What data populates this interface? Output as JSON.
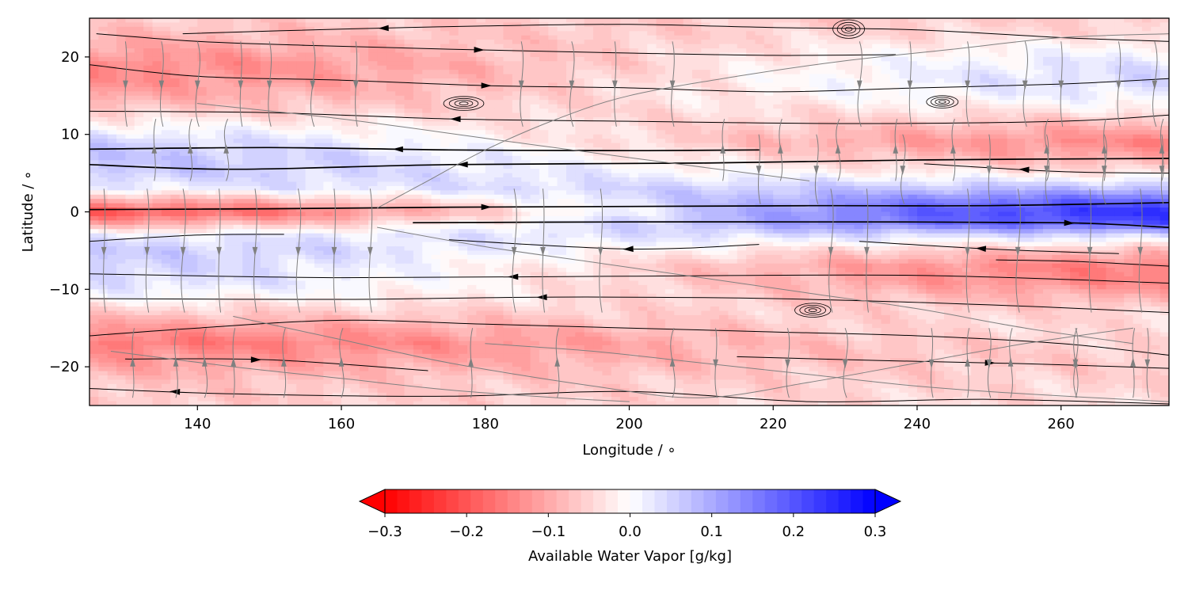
{
  "chart_data": {
    "type": "heatmap",
    "title": "",
    "xlabel": "Longitude / ∘",
    "ylabel": "Latitude / ∘",
    "xlim": [
      125,
      275
    ],
    "ylim": [
      -25,
      25
    ],
    "xticks": [
      140,
      160,
      180,
      200,
      220,
      240,
      260
    ],
    "yticks": [
      20,
      10,
      0,
      -10,
      -20
    ],
    "xtick_labels": [
      "140",
      "160",
      "180",
      "200",
      "220",
      "240",
      "260"
    ],
    "ytick_labels": [
      "20",
      "10",
      "0",
      "−10",
      "−20"
    ],
    "grid": false,
    "colormap": "bwr_r",
    "colors": {
      "low": "#ff0000",
      "mid": "#ffffff",
      "high": "#0000ff"
    },
    "colorbar": {
      "label": "Available Water Vapor [g/kg]",
      "range": [
        -0.3,
        0.3
      ],
      "levels": 40,
      "extend": "both",
      "ticks": [
        -0.3,
        -0.2,
        -0.1,
        0.0,
        0.1,
        0.2,
        0.3
      ],
      "tick_labels": [
        "−0.3",
        "−0.2",
        "−0.1",
        "0.0",
        "0.1",
        "0.2",
        "0.3"
      ]
    },
    "field_profile": {
      "description_axis": "latitude",
      "lat": [
        -25,
        -22,
        -19,
        -17,
        -15,
        -13,
        -11,
        -9,
        -7,
        -5,
        -3,
        -1.5,
        0,
        1.5,
        3,
        5,
        7,
        9,
        11,
        13,
        15,
        17,
        19,
        21,
        23,
        25
      ],
      "west_value": [
        -0.06,
        -0.07,
        -0.12,
        -0.16,
        -0.12,
        -0.06,
        0.0,
        0.04,
        0.05,
        0.06,
        0.02,
        -0.1,
        -0.2,
        -0.1,
        0.02,
        0.06,
        0.07,
        0.05,
        0.0,
        -0.06,
        -0.1,
        -0.13,
        -0.14,
        -0.11,
        -0.08,
        -0.06
      ],
      "east_value": [
        -0.04,
        -0.05,
        -0.06,
        -0.05,
        -0.04,
        -0.05,
        -0.09,
        -0.14,
        -0.15,
        -0.08,
        0.05,
        0.2,
        0.24,
        0.18,
        0.08,
        -0.03,
        -0.1,
        -0.14,
        -0.09,
        -0.03,
        0.02,
        0.04,
        0.03,
        0.0,
        -0.04,
        -0.06
      ]
    },
    "streamlines": [
      {
        "strength": "strong",
        "lon": [
          125,
          150,
          175,
          200,
          225,
          250,
          275
        ],
        "lat": [
          0.3,
          0.4,
          0.6,
          0.7,
          0.8,
          0.8,
          1.2
        ],
        "arrow_lon": 180,
        "direction": "east"
      },
      {
        "strength": "strong",
        "lon": [
          170,
          200,
          230,
          260,
          275
        ],
        "lat": [
          -1.4,
          -1.3,
          -1.3,
          -1.4,
          -2.0
        ],
        "arrow_lon": 261,
        "direction": "east"
      },
      {
        "strength": "strong",
        "lon": [
          125,
          150,
          175,
          200,
          218
        ],
        "lat": [
          8.1,
          8.3,
          8.0,
          7.9,
          8.0
        ],
        "arrow_lon": 168,
        "direction": "west"
      },
      {
        "strength": "strong",
        "lon": [
          125,
          145,
          175,
          210,
          240,
          275
        ],
        "lat": [
          6.1,
          5.5,
          6.1,
          6.3,
          6.7,
          6.9
        ],
        "arrow_lon": 177,
        "direction": "west"
      },
      {
        "strength": "medium",
        "lon": [
          125,
          140,
          160,
          180,
          200,
          220,
          240,
          260,
          275
        ],
        "lat": [
          19.0,
          17.5,
          17.0,
          16.3,
          16.0,
          15.5,
          16.0,
          16.5,
          17.2
        ],
        "arrow_lon": 180,
        "direction": "east"
      },
      {
        "strength": "medium",
        "lon": [
          125,
          150,
          175,
          200,
          230,
          260,
          275
        ],
        "lat": [
          13.0,
          12.8,
          12.0,
          11.7,
          11.4,
          11.7,
          12.5
        ],
        "arrow_lon": 176,
        "direction": "west"
      },
      {
        "strength": "medium",
        "lon": [
          125,
          160,
          200,
          240,
          275
        ],
        "lat": [
          -8.0,
          -8.5,
          -8.3,
          -8.2,
          -9.2
        ],
        "arrow_lon": 184,
        "direction": "west"
      },
      {
        "strength": "medium",
        "lon": [
          125,
          160,
          190,
          220,
          250,
          275
        ],
        "lat": [
          -11.2,
          -11.3,
          -11.0,
          -11.2,
          -12.0,
          -13.0
        ],
        "arrow_lon": 188,
        "direction": "west"
      },
      {
        "strength": "medium",
        "lon": [
          125,
          140,
          160,
          180,
          200,
          220,
          240,
          260,
          275
        ],
        "lat": [
          -16.0,
          -15.0,
          -14.0,
          -14.5,
          -15.0,
          -15.5,
          -16.0,
          -17.0,
          -18.5
        ],
        "arrow_lon": 0,
        "direction": "none"
      },
      {
        "strength": "medium",
        "lon": [
          130,
          150,
          172
        ],
        "lat": [
          -19.0,
          -19.1,
          -20.5
        ],
        "arrow_lon": 148,
        "direction": "east"
      },
      {
        "strength": "medium",
        "lon": [
          215,
          235,
          255,
          275
        ],
        "lat": [
          -18.7,
          -19.2,
          -19.6,
          -20.2
        ],
        "arrow_lon": 250,
        "direction": "east"
      },
      {
        "strength": "medium",
        "lon": [
          125,
          145,
          175,
          200,
          225,
          250,
          275
        ],
        "lat": [
          -22.8,
          -23.5,
          -23.8,
          -23.2,
          -24.5,
          -24.2,
          -24.8
        ],
        "arrow_lon": 137,
        "direction": "west"
      },
      {
        "strength": "medium",
        "lon": [
          126,
          140,
          155,
          175,
          200,
          220,
          237
        ],
        "lat": [
          23.0,
          22.0,
          21.5,
          21.0,
          20.5,
          20.2,
          20.3
        ],
        "arrow_lon": 179,
        "direction": "east"
      },
      {
        "strength": "medium",
        "lon": [
          138,
          160,
          180,
          200,
          220,
          240,
          260,
          275
        ],
        "lat": [
          23.0,
          23.6,
          24.0,
          24.2,
          23.8,
          23.5,
          22.5,
          22.0
        ],
        "arrow_lon": 166,
        "direction": "west"
      },
      {
        "strength": "medium",
        "lon": [
          125,
          140,
          152
        ],
        "lat": [
          -3.8,
          -3.0,
          -2.9
        ],
        "arrow_lon": 0,
        "direction": "none"
      },
      {
        "strength": "medium",
        "lon": [
          175,
          200,
          218
        ],
        "lat": [
          -3.6,
          -4.8,
          -4.2
        ],
        "arrow_lon": 200,
        "direction": "west"
      },
      {
        "strength": "medium",
        "lon": [
          232,
          250,
          268
        ],
        "lat": [
          -3.8,
          -4.8,
          -5.4
        ],
        "arrow_lon": 249,
        "direction": "west"
      },
      {
        "strength": "medium",
        "lon": [
          241,
          260,
          275
        ],
        "lat": [
          6.2,
          5.2,
          5.0
        ],
        "arrow_lon": 255,
        "direction": "west"
      },
      {
        "strength": "medium",
        "lon": [
          251,
          262,
          275
        ],
        "lat": [
          -6.2,
          -6.4,
          -7.0
        ],
        "arrow_lon": 0,
        "direction": "none"
      },
      {
        "strength": "weak",
        "lon": [
          145,
          160,
          175,
          195,
          210,
          225,
          240,
          255,
          270
        ],
        "lat": [
          -13.5,
          -16.5,
          -19.5,
          -22.5,
          -24.0,
          -22.0,
          -19.5,
          -17.0,
          -15.0
        ],
        "arrow_lon": 0,
        "direction": "none"
      },
      {
        "strength": "weak",
        "lon": [
          165,
          180,
          195,
          210,
          225,
          240,
          255,
          270
        ],
        "lat": [
          -2.0,
          -4.5,
          -6.5,
          -8.5,
          -10.5,
          -12.5,
          -15.0,
          -17.0
        ],
        "arrow_lon": 0,
        "direction": "none"
      },
      {
        "strength": "weak",
        "lon": [
          165,
          172,
          180,
          190,
          200,
          215,
          230,
          245,
          260,
          275
        ],
        "lat": [
          0.5,
          4.0,
          8.0,
          12.0,
          15.0,
          17.5,
          19.5,
          21.0,
          22.5,
          23.0
        ],
        "arrow_lon": 0,
        "direction": "none"
      },
      {
        "strength": "weak",
        "lon": [
          128,
          145,
          160,
          175,
          190,
          200
        ],
        "lat": [
          -18.0,
          -20.0,
          -21.5,
          -23.0,
          -24.0,
          -24.5
        ],
        "arrow_lon": 0,
        "direction": "none"
      },
      {
        "strength": "weak",
        "lon": [
          180,
          195,
          210,
          225,
          240,
          255,
          275
        ],
        "lat": [
          -17.0,
          -18.0,
          -19.5,
          -21.0,
          -22.5,
          -23.5,
          -24.5
        ],
        "arrow_lon": 0,
        "direction": "none"
      },
      {
        "strength": "weak",
        "lon": [
          140,
          160,
          180,
          200,
          225
        ],
        "lat": [
          14.0,
          12.0,
          9.5,
          7.0,
          4.0
        ],
        "arrow_lon": 0,
        "direction": "none"
      }
    ],
    "vertical_flows": [
      {
        "lon": [
          127,
          133,
          138,
          143,
          148,
          154,
          159,
          164,
          184,
          188,
          196,
          228,
          233,
          247,
          254,
          264,
          271
        ],
        "from_lat": 3,
        "to_lat": -13,
        "direction": "south"
      },
      {
        "lon": [
          130,
          135,
          140,
          146,
          150,
          156,
          162,
          185,
          192,
          198,
          206,
          232,
          239,
          247,
          255,
          260,
          268,
          273
        ],
        "from_lat": 22,
        "to_lat": 11,
        "direction": "south"
      },
      {
        "lon": [
          131,
          137,
          141,
          145,
          152,
          160,
          178,
          190,
          206,
          247,
          253,
          262,
          270
        ],
        "from_lat": -24,
        "to_lat": -15,
        "direction": "north"
      },
      {
        "lon": [
          134,
          139,
          144,
          213,
          221,
          229,
          237,
          245,
          258,
          266,
          274
        ],
        "from_lat": 4,
        "to_lat": 12,
        "direction": "north"
      },
      {
        "lon": [
          218,
          226,
          238,
          250,
          258,
          266,
          274
        ],
        "from_lat": 10,
        "to_lat": 1,
        "direction": "south"
      },
      {
        "lon": [
          212,
          222,
          230,
          242,
          250,
          262,
          272
        ],
        "from_lat": -15,
        "to_lat": -24,
        "direction": "south"
      }
    ],
    "vortices": [
      {
        "lon": 177,
        "lat": 14.0,
        "rx": 2.8,
        "ry": 0.9
      },
      {
        "lon": 243.5,
        "lat": 14.2,
        "rx": 2.2,
        "ry": 0.8
      },
      {
        "lon": 225.5,
        "lat": -12.7,
        "rx": 2.5,
        "ry": 0.9
      },
      {
        "lon": 230.5,
        "lat": 23.6,
        "rx": 2.2,
        "ry": 1.2
      }
    ]
  }
}
